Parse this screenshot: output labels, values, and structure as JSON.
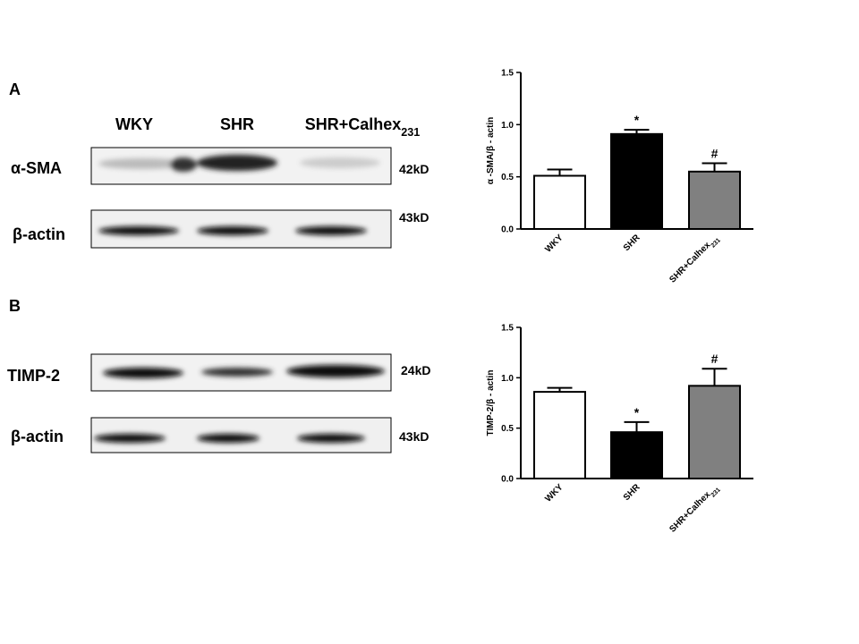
{
  "blots": {
    "lanes": [
      "WKY",
      "SHR",
      "SHR+Calhex231"
    ],
    "panels": [
      {
        "letter": "A",
        "rows": [
          {
            "label": "α-SMA",
            "size": "42kD"
          },
          {
            "label": "β-actin",
            "size": "43kD"
          }
        ]
      },
      {
        "letter": "B",
        "rows": [
          {
            "label": "TIMP-2",
            "size": "24kD"
          },
          {
            "label": "β-actin",
            "size": "43kD"
          }
        ]
      }
    ]
  },
  "chart_data": [
    {
      "type": "bar",
      "ylabel": "α -SMA/β - actin",
      "categories": [
        "WKY",
        "SHR",
        "SHR+Calhex231"
      ],
      "values": [
        0.51,
        0.91,
        0.55
      ],
      "errors": [
        0.06,
        0.04,
        0.08
      ],
      "markers": [
        null,
        "*",
        "#"
      ],
      "colors": [
        "#ffffff",
        "#000000",
        "#808080"
      ],
      "ylim": [
        0,
        1.5
      ],
      "yticks": [
        {
          "value": 0,
          "label": "0.0"
        },
        {
          "value": 0.5,
          "label": "0.5"
        },
        {
          "value": 1,
          "label": "1.0"
        },
        {
          "value": 1.5,
          "label": "1.5"
        }
      ]
    },
    {
      "type": "bar",
      "ylabel": "TIMP-2/β - actin",
      "categories": [
        "WKY",
        "SHR",
        "SHR+Calhex231"
      ],
      "values": [
        0.86,
        0.46,
        0.92
      ],
      "errors": [
        0.04,
        0.1,
        0.17
      ],
      "markers": [
        null,
        "*",
        "#"
      ],
      "colors": [
        "#ffffff",
        "#000000",
        "#808080"
      ],
      "ylim": [
        0,
        1.5
      ],
      "yticks": [
        {
          "value": 0,
          "label": "0.0"
        },
        {
          "value": 0.5,
          "label": "0.5"
        },
        {
          "value": 1,
          "label": "1.0"
        },
        {
          "value": 1.5,
          "label": "1.5"
        }
      ]
    }
  ]
}
